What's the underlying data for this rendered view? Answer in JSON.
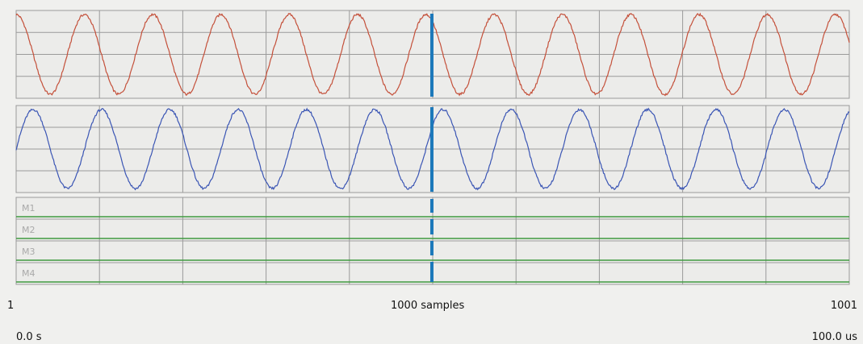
{
  "colors": {
    "panel_bg": "#f0f0ee",
    "plot_bg": "#ececea",
    "grid": "#9a9a9a",
    "channel1": "#c4503a",
    "channel2": "#3a55b4",
    "digital": "#3f9a3f",
    "cursor": "#1c78ba",
    "digital_label": "#a9a9a9"
  },
  "axis": {
    "start_sample": "1",
    "center_label": "1000 samples",
    "end_sample": "1001",
    "start_time": "0.0  s",
    "end_time": "100.0 us"
  },
  "cursor": {
    "sample": 500
  },
  "chart_data": {
    "type": "line",
    "x_range": [
      1,
      1001
    ],
    "grid": true,
    "analog_channels": [
      {
        "id": "ch1",
        "color": "#c4503a",
        "cycles": 12.2,
        "phase_deg": 90,
        "noisy": true
      },
      {
        "id": "ch2",
        "color": "#3a55b4",
        "cycles": 12.2,
        "phase_deg": 0,
        "noisy": true
      }
    ],
    "digital_channels": [
      {
        "label": "M1",
        "level": 0
      },
      {
        "label": "M2",
        "level": 0
      },
      {
        "label": "M3",
        "level": 0
      },
      {
        "label": "M4",
        "level": 0
      }
    ]
  }
}
